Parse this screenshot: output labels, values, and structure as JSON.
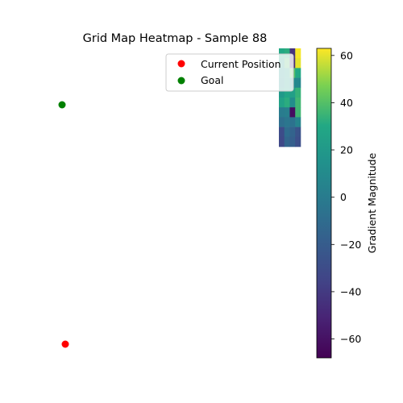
{
  "chart_data": {
    "type": "heatmap",
    "title": "Grid Map Heatmap - Sample 88",
    "grid": {
      "rows": [
        [
          30,
          32,
          -44,
          62
        ],
        [
          22,
          38,
          -48,
          60
        ],
        [
          18,
          26,
          40,
          30
        ],
        [
          16,
          24,
          10,
          8
        ],
        [
          20,
          28,
          24,
          34
        ],
        [
          26,
          32,
          12,
          36
        ],
        [
          0,
          2,
          -62,
          36
        ],
        [
          -8,
          -4,
          -6,
          6
        ],
        [
          -30,
          -10,
          -16,
          -26
        ],
        [
          -32,
          -14,
          -18,
          -28
        ]
      ]
    },
    "scatter": [
      {
        "name": "Current Position",
        "color": "#ff0000",
        "point": [
          -10.2,
          -48.6
        ]
      },
      {
        "name": "Goal",
        "color": "#008000",
        "point": [
          -10.6,
          -9.4
        ]
      }
    ],
    "legend": {
      "placement": "top-right",
      "entries": [
        "Current Position",
        "Goal"
      ]
    },
    "colorbar": {
      "label": "Gradient Magnitude",
      "range": [
        -68,
        63
      ],
      "ticks": [
        -60,
        -40,
        -20,
        0,
        20,
        40,
        60
      ],
      "tick_labels": [
        "−60",
        "−40",
        "−20",
        "0",
        "20",
        "40",
        "60"
      ],
      "colormap": "viridis"
    }
  }
}
